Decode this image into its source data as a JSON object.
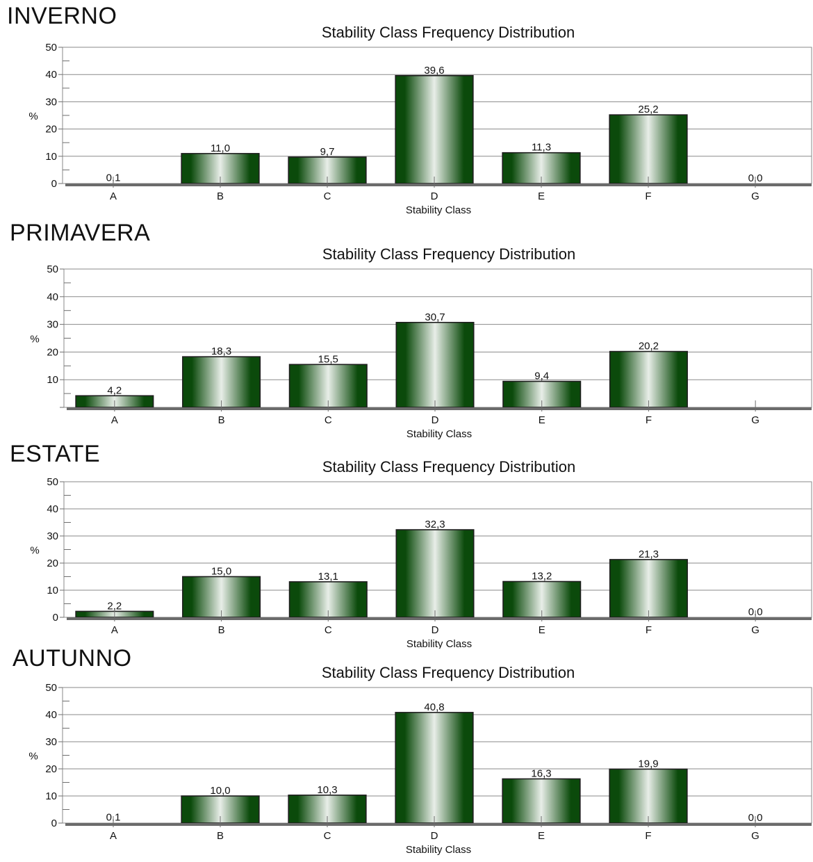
{
  "figure": {
    "colors": {
      "bar_dark": "#0b4a0b",
      "bar_light": "#e8eee8",
      "grid": "#8a8a8a",
      "axis": "#6e6e6e",
      "text": "#111111"
    }
  },
  "chart_data": [
    {
      "type": "bar",
      "season": "INVERNO",
      "title": "Stability Class Frequency Distribution",
      "xlabel": "Stability Class",
      "ylabel": "%",
      "ylim": [
        0,
        50
      ],
      "yticks": [
        "0",
        "10",
        "20",
        "30",
        "40",
        "50"
      ],
      "categories": [
        "A",
        "B",
        "C",
        "D",
        "E",
        "F",
        "G"
      ],
      "values": [
        0.1,
        11.0,
        9.7,
        39.6,
        11.3,
        25.2,
        0.0
      ],
      "labels": [
        "0,1",
        "11,0",
        "9,7",
        "39,6",
        "11,3",
        "25,2",
        "0,0"
      ],
      "grid": true
    },
    {
      "type": "bar",
      "season": "PRIMAVERA",
      "title": "Stability Class Frequency Distribution",
      "xlabel": "Stability Class",
      "ylabel": "%",
      "ylim": [
        0,
        50
      ],
      "yticks": [
        "",
        "10",
        "20",
        "30",
        "40",
        "50"
      ],
      "categories": [
        "A",
        "B",
        "C",
        "D",
        "E",
        "F",
        "G"
      ],
      "values": [
        4.2,
        18.3,
        15.5,
        30.7,
        9.4,
        20.2,
        0.0
      ],
      "labels": [
        "4,2",
        "18,3",
        "15,5",
        "30,7",
        "9,4",
        "20,2",
        ""
      ],
      "grid": true
    },
    {
      "type": "bar",
      "season": "ESTATE",
      "title": "Stability Class Frequency Distribution",
      "xlabel": "Stability Class",
      "ylabel": "%",
      "ylim": [
        0,
        50
      ],
      "yticks": [
        "0",
        "10",
        "20",
        "30",
        "40",
        "50"
      ],
      "categories": [
        "A",
        "B",
        "C",
        "D",
        "E",
        "F",
        "G"
      ],
      "values": [
        2.2,
        15.0,
        13.1,
        32.3,
        13.2,
        21.3,
        0.0
      ],
      "labels": [
        "2,2",
        "15,0",
        "13,1",
        "32,3",
        "13,2",
        "21,3",
        "0,0"
      ],
      "grid": true
    },
    {
      "type": "bar",
      "season": "AUTUNNO",
      "title": "Stability Class Frequency Distribution",
      "xlabel": "Stability Class",
      "ylabel": "%",
      "ylim": [
        0,
        50
      ],
      "yticks": [
        "0",
        "10",
        "20",
        "30",
        "40",
        "50"
      ],
      "categories": [
        "A",
        "B",
        "C",
        "D",
        "E",
        "F",
        "G"
      ],
      "values": [
        0.1,
        10.0,
        10.3,
        40.8,
        16.3,
        19.9,
        0.0
      ],
      "labels": [
        "0,1",
        "10,0",
        "10,3",
        "40,8",
        "16,3",
        "19,9",
        "0,0"
      ],
      "grid": true
    }
  ]
}
